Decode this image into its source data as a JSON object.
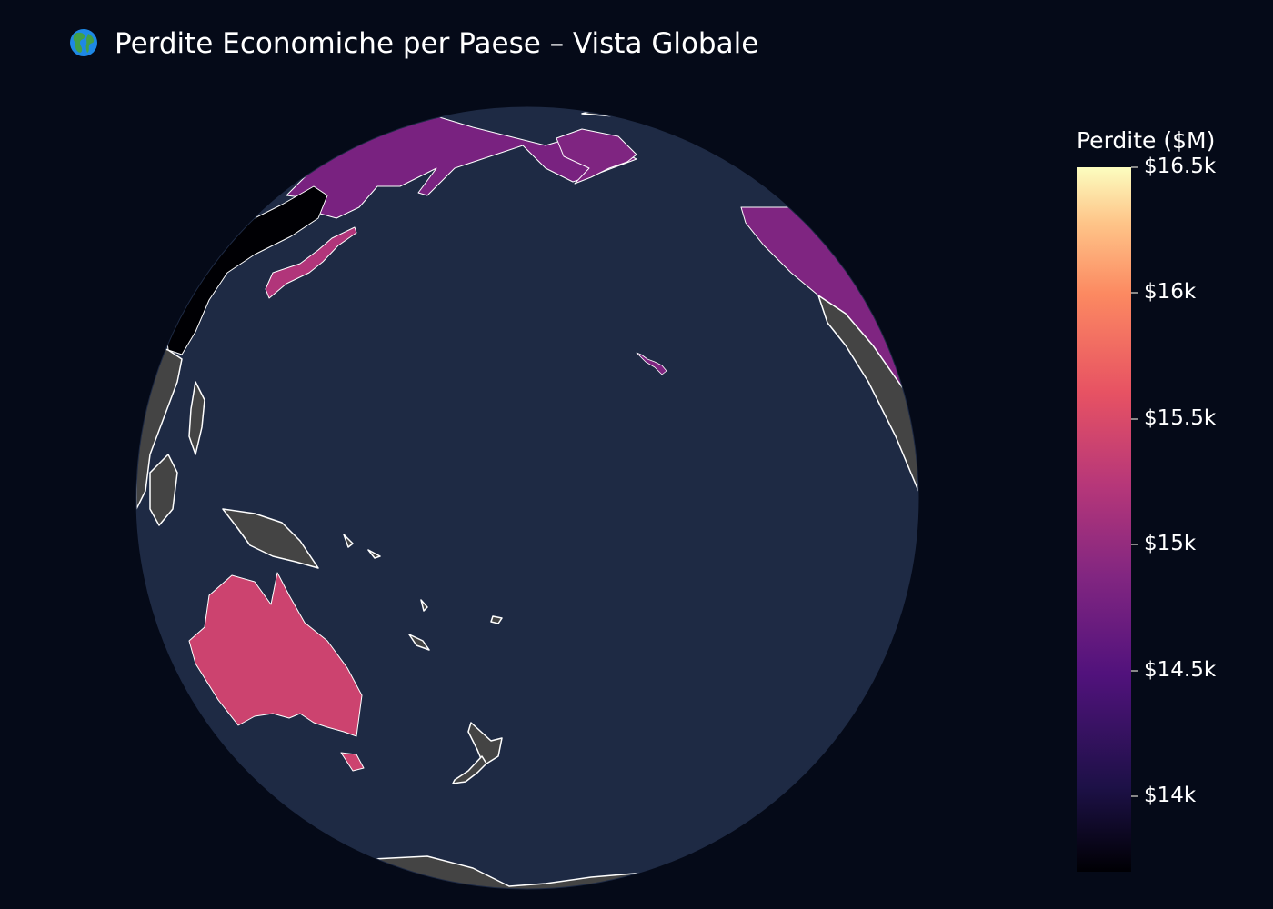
{
  "title": "Perdite Economiche per Paese – Vista Globale",
  "title_icon": "globe-emoji-icon",
  "colorbar": {
    "title": "Perdite ($M)",
    "colorscale": "magma",
    "range": [
      13700,
      16500
    ],
    "ticks": [
      {
        "value": 16500,
        "label": "$16.5k"
      },
      {
        "value": 16000,
        "label": "$16k"
      },
      {
        "value": 15500,
        "label": "$15.5k"
      },
      {
        "value": 15000,
        "label": "$15k"
      },
      {
        "value": 14500,
        "label": "$14.5k"
      },
      {
        "value": 14000,
        "label": "$14k"
      }
    ]
  },
  "map": {
    "projection": "orthographic",
    "ocean_color": "#1e2a44",
    "land_color": "#444444",
    "coastline_color": "#ffffff",
    "background_color": "#050a18"
  },
  "chart_data": {
    "type": "choropleth",
    "countries": [
      {
        "name": "Russia",
        "value": 14800
      },
      {
        "name": "United States",
        "value": 14850
      },
      {
        "name": "Japan",
        "value": 15200
      },
      {
        "name": "Australia",
        "value": 15400
      },
      {
        "name": "China",
        "value": 13700
      }
    ]
  }
}
